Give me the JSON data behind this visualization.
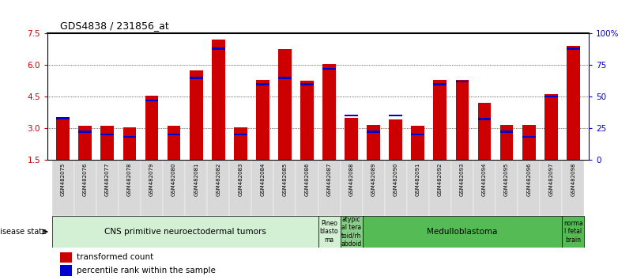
{
  "title": "GDS4838 / 231856_at",
  "samples": [
    "GSM482075",
    "GSM482076",
    "GSM482077",
    "GSM482078",
    "GSM482079",
    "GSM482080",
    "GSM482081",
    "GSM482082",
    "GSM482083",
    "GSM482084",
    "GSM482085",
    "GSM482086",
    "GSM482087",
    "GSM482088",
    "GSM482089",
    "GSM482090",
    "GSM482091",
    "GSM482092",
    "GSM482093",
    "GSM482094",
    "GSM482095",
    "GSM482096",
    "GSM482097",
    "GSM482098"
  ],
  "transformed_count": [
    3.4,
    3.1,
    3.1,
    3.05,
    4.55,
    3.1,
    5.75,
    7.2,
    3.05,
    5.3,
    6.75,
    5.25,
    6.05,
    3.5,
    3.15,
    3.4,
    3.1,
    5.3,
    5.3,
    4.2,
    3.15,
    3.15,
    4.6,
    6.9
  ],
  "percentile_rank": [
    33,
    22,
    20,
    18,
    47,
    20,
    65,
    88,
    20,
    60,
    65,
    60,
    72,
    35,
    22,
    35,
    20,
    60,
    62,
    32,
    22,
    18,
    50,
    88
  ],
  "ylim_left": [
    1.5,
    7.5
  ],
  "ylim_right": [
    0,
    100
  ],
  "yticks_left": [
    1.5,
    3.0,
    4.5,
    6.0,
    7.5
  ],
  "yticks_right": [
    0,
    25,
    50,
    75,
    100
  ],
  "ytick_labels_right": [
    "0",
    "25",
    "50",
    "75",
    "100%"
  ],
  "bar_color": "#cc0000",
  "percentile_color": "#0000cc",
  "bar_width": 0.6,
  "disease_groups": [
    {
      "label": "CNS primitive neuroectodermal tumors",
      "start": 0,
      "end": 12,
      "color": "#d4f0d4",
      "fontsize": 7.5
    },
    {
      "label": "Pineo\nblasto\nma",
      "start": 12,
      "end": 13,
      "color": "#d4f0d4",
      "fontsize": 5.5
    },
    {
      "label": "atypic\nal tera\ntoid/rh\nabdoid",
      "start": 13,
      "end": 14,
      "color": "#88cc88",
      "fontsize": 5.5
    },
    {
      "label": "Medulloblastoma",
      "start": 14,
      "end": 23,
      "color": "#55bb55",
      "fontsize": 7.5
    },
    {
      "label": "norma\nl fetal\nbrain",
      "start": 23,
      "end": 24,
      "color": "#55bb55",
      "fontsize": 5.5
    }
  ],
  "xlabel_disease": "disease state",
  "legend_items": [
    {
      "label": "transformed count",
      "color": "#cc0000"
    },
    {
      "label": "percentile rank within the sample",
      "color": "#0000cc"
    }
  ],
  "tick_color_left": "#cc0000",
  "tick_color_right": "#0000cc",
  "background_color": "#ffffff",
  "xtick_bg": "#d8d8d8"
}
